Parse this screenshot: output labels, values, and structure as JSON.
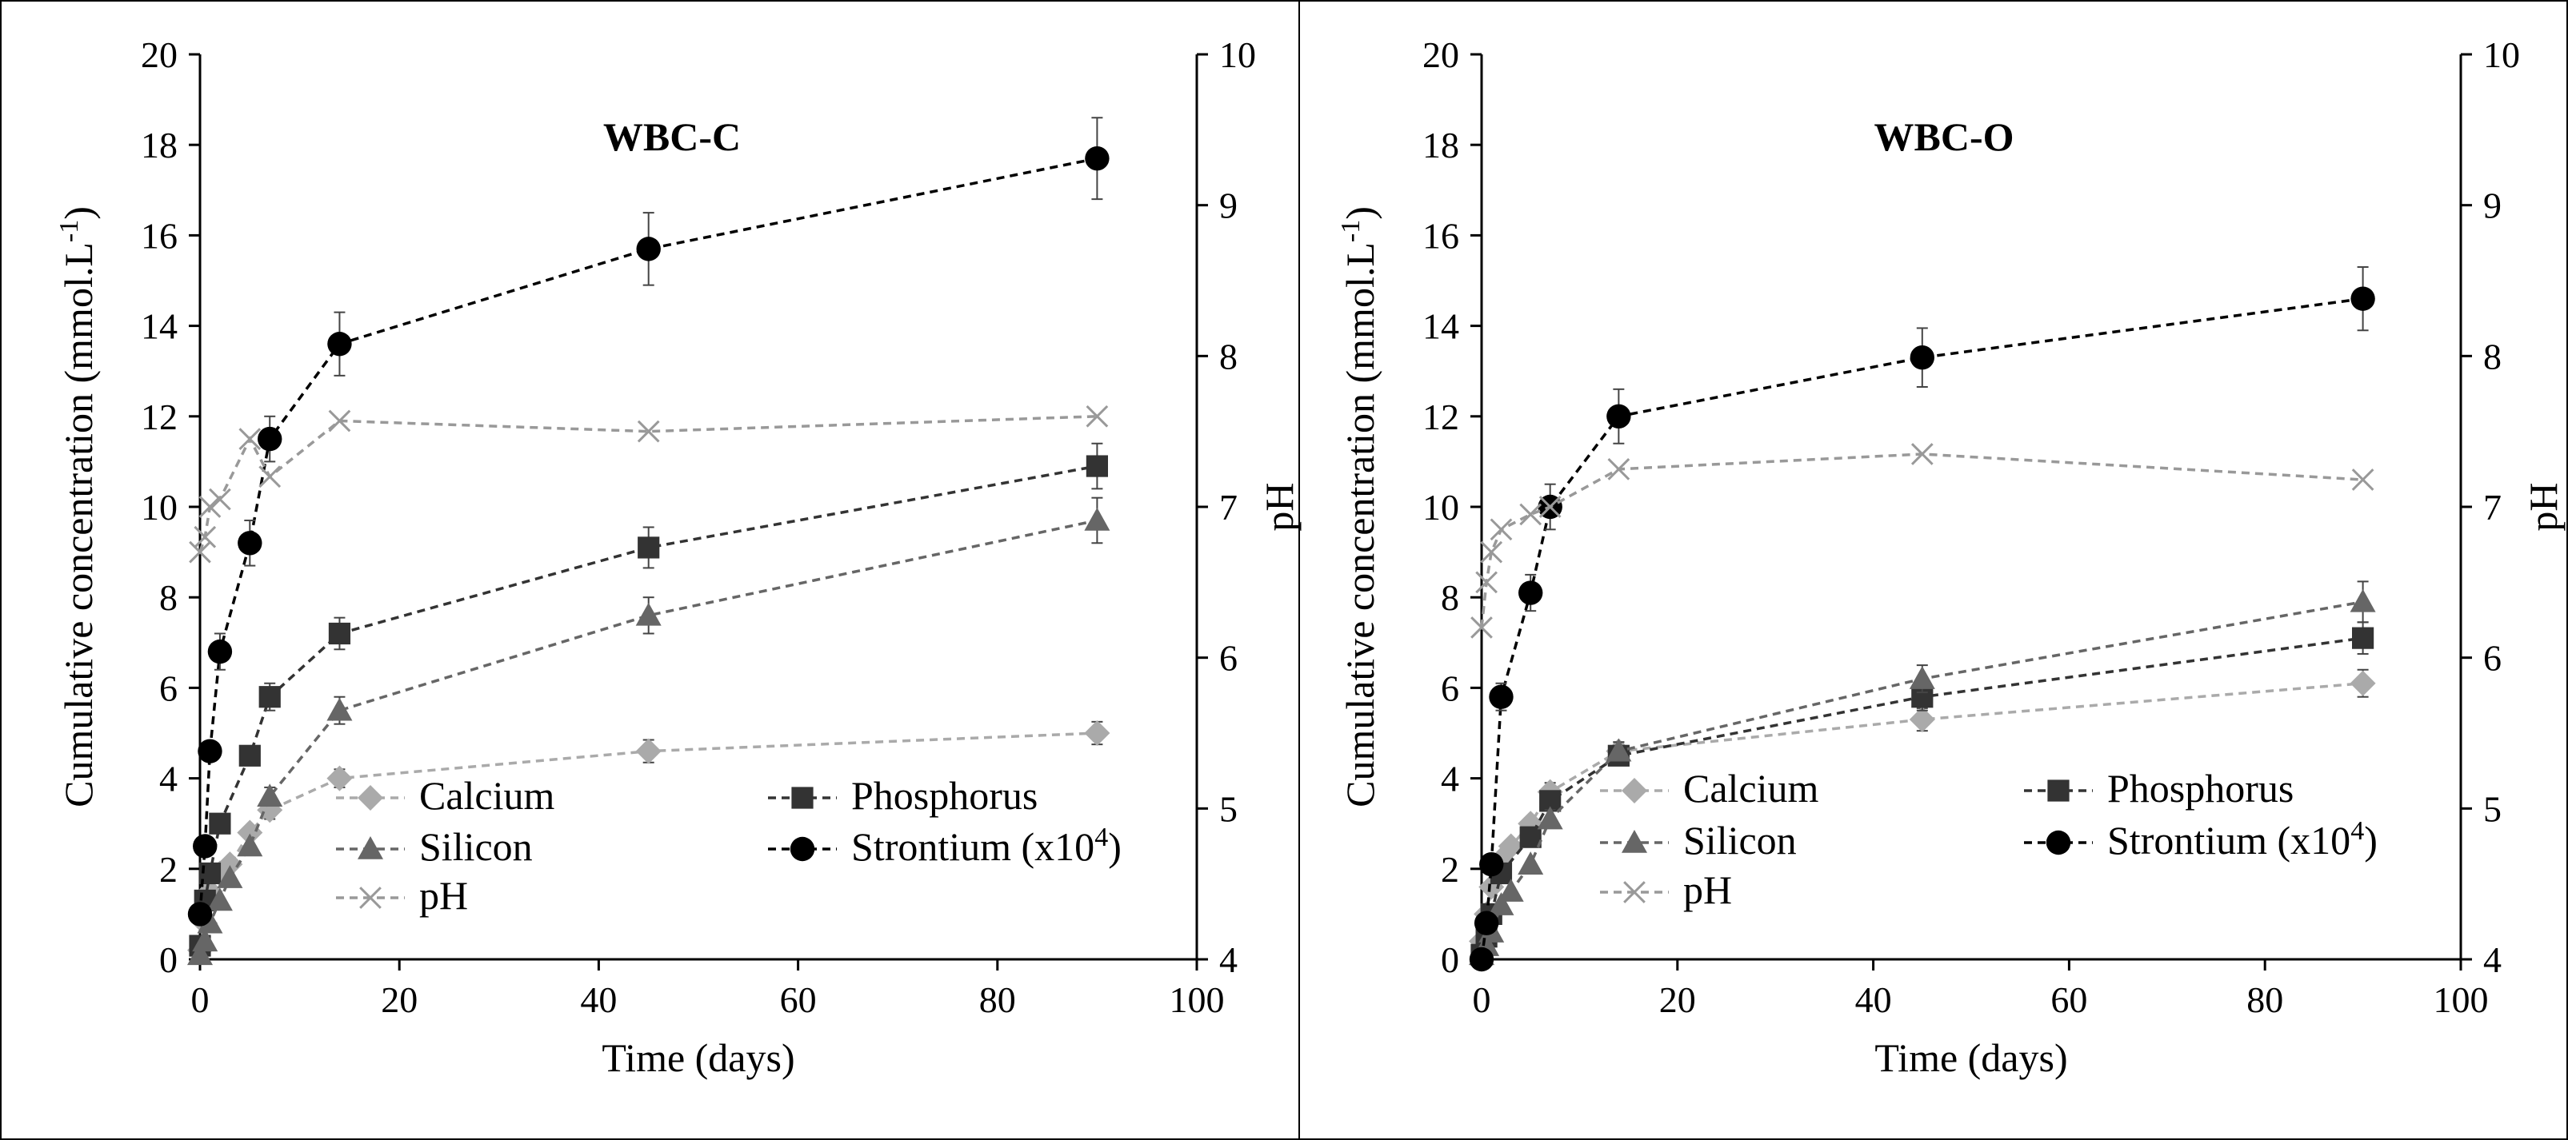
{
  "chart_data": [
    {
      "type": "line",
      "title": "WBC-C",
      "xlabel": "Time (days)",
      "ylabel": "Cumulative concentration (mmol.L-1)",
      "y2label": "pH",
      "xlim": [
        0,
        100
      ],
      "ylim": [
        0,
        20
      ],
      "y2lim": [
        4,
        10
      ],
      "xticks": [
        "0",
        "20",
        "40",
        "60",
        "80",
        "100"
      ],
      "yticks": [
        "0",
        "2",
        "4",
        "6",
        "8",
        "10",
        "12",
        "14",
        "16",
        "18",
        "20"
      ],
      "y2ticks": [
        "4",
        "5",
        "6",
        "7",
        "8",
        "9",
        "10"
      ],
      "grid": false,
      "legend": "lower-center",
      "series": [
        {
          "name": "Calcium",
          "marker": "diamond",
          "color": "#aaaaaa",
          "axis": "left",
          "x": [
            0,
            0.5,
            1,
            2,
            3,
            5,
            7,
            14,
            45,
            90
          ],
          "y": [
            0.2,
            0.8,
            1.5,
            1.9,
            2.1,
            2.8,
            3.3,
            4.0,
            4.6,
            5.0
          ],
          "err": [
            0,
            0,
            0,
            0,
            0,
            0,
            0.2,
            0.2,
            0.25,
            0.25
          ]
        },
        {
          "name": "Phosphorus",
          "marker": "square",
          "color": "#333333",
          "axis": "left",
          "x": [
            0,
            0.5,
            1,
            2,
            5,
            7,
            14,
            45,
            90
          ],
          "y": [
            0.3,
            1.3,
            1.9,
            3.0,
            4.5,
            5.8,
            7.2,
            9.1,
            10.9
          ],
          "err": [
            0,
            0,
            0,
            0,
            0.2,
            0.3,
            0.35,
            0.45,
            0.5
          ]
        },
        {
          "name": "Silicon",
          "marker": "triangle",
          "color": "#666666",
          "axis": "left",
          "x": [
            0,
            0.5,
            1,
            2,
            3,
            5,
            7,
            14,
            45,
            90
          ],
          "y": [
            0.1,
            0.4,
            0.8,
            1.3,
            1.8,
            2.5,
            3.6,
            5.5,
            7.6,
            9.7
          ],
          "err": [
            0,
            0,
            0,
            0,
            0,
            0,
            0.2,
            0.3,
            0.4,
            0.5
          ]
        },
        {
          "name": "Strontium (x104)",
          "marker": "circle",
          "color": "#000000",
          "axis": "left",
          "x": [
            0,
            0.5,
            1,
            2,
            5,
            7,
            14,
            45,
            90
          ],
          "y": [
            1.0,
            2.5,
            4.6,
            6.8,
            9.2,
            11.5,
            13.6,
            15.7,
            17.7
          ],
          "err": [
            0,
            0,
            0,
            0.4,
            0.5,
            0.5,
            0.7,
            0.8,
            0.9
          ]
        },
        {
          "name": "pH",
          "marker": "x",
          "color": "#999999",
          "axis": "right",
          "x": [
            0,
            0.5,
            1,
            2,
            5,
            7,
            14,
            45,
            90
          ],
          "y": [
            6.7,
            6.8,
            7.0,
            7.05,
            7.45,
            7.2,
            7.57,
            7.5,
            7.6
          ],
          "err": [
            0,
            0,
            0,
            0,
            0,
            0,
            0,
            0,
            0
          ]
        }
      ]
    },
    {
      "type": "line",
      "title": "WBC-O",
      "xlabel": "Time (days)",
      "ylabel": "Cumulative concentration (mmol.L-1)",
      "y2label": "pH",
      "xlim": [
        0,
        100
      ],
      "ylim": [
        0,
        20
      ],
      "y2lim": [
        4,
        10
      ],
      "xticks": [
        "0",
        "20",
        "40",
        "60",
        "80",
        "100"
      ],
      "yticks": [
        "0",
        "2",
        "4",
        "6",
        "8",
        "10",
        "12",
        "14",
        "16",
        "18",
        "20"
      ],
      "y2ticks": [
        "4",
        "5",
        "6",
        "7",
        "8",
        "9",
        "10"
      ],
      "grid": false,
      "legend": "lower-center",
      "series": [
        {
          "name": "Calcium",
          "marker": "diamond",
          "color": "#aaaaaa",
          "axis": "left",
          "x": [
            0,
            0.5,
            1,
            2,
            3,
            5,
            7,
            14,
            45,
            90
          ],
          "y": [
            0.4,
            1.0,
            1.6,
            2.2,
            2.5,
            3.0,
            3.7,
            4.6,
            5.3,
            6.1
          ],
          "err": [
            0,
            0,
            0,
            0,
            0,
            0,
            0.2,
            0.2,
            0.25,
            0.3
          ]
        },
        {
          "name": "Phosphorus",
          "marker": "square",
          "color": "#333333",
          "axis": "left",
          "x": [
            0,
            0.5,
            1,
            2,
            5,
            7,
            14,
            45,
            90
          ],
          "y": [
            0.1,
            0.5,
            1.0,
            1.9,
            2.7,
            3.5,
            4.5,
            5.8,
            7.1
          ],
          "err": [
            0,
            0,
            0,
            0,
            0,
            0.2,
            0.2,
            0.3,
            0.35
          ]
        },
        {
          "name": "Silicon",
          "marker": "triangle",
          "color": "#666666",
          "axis": "left",
          "x": [
            0,
            0.5,
            1,
            2,
            3,
            5,
            7,
            14,
            45,
            90
          ],
          "y": [
            0.1,
            0.3,
            0.6,
            1.2,
            1.5,
            2.1,
            3.1,
            4.6,
            6.2,
            7.9
          ],
          "err": [
            0,
            0,
            0,
            0,
            0,
            0,
            0.2,
            0.2,
            0.3,
            0.45
          ]
        },
        {
          "name": "Strontium (x104)",
          "marker": "circle",
          "color": "#000000",
          "axis": "left",
          "x": [
            0,
            0.5,
            1,
            2,
            5,
            7,
            14,
            45,
            90
          ],
          "y": [
            0.0,
            0.8,
            2.1,
            5.8,
            8.1,
            10.0,
            12.0,
            13.3,
            14.6
          ],
          "err": [
            0,
            0,
            0,
            0.3,
            0.4,
            0.5,
            0.6,
            0.65,
            0.7
          ]
        },
        {
          "name": "pH",
          "marker": "x",
          "color": "#999999",
          "axis": "right",
          "x": [
            0,
            0.5,
            1,
            2,
            5,
            7,
            14,
            45,
            90
          ],
          "y": [
            6.2,
            6.5,
            6.7,
            6.85,
            6.95,
            7.0,
            7.25,
            7.35,
            7.18
          ],
          "err": [
            0,
            0,
            0,
            0,
            0,
            0,
            0,
            0,
            0
          ]
        }
      ]
    }
  ]
}
